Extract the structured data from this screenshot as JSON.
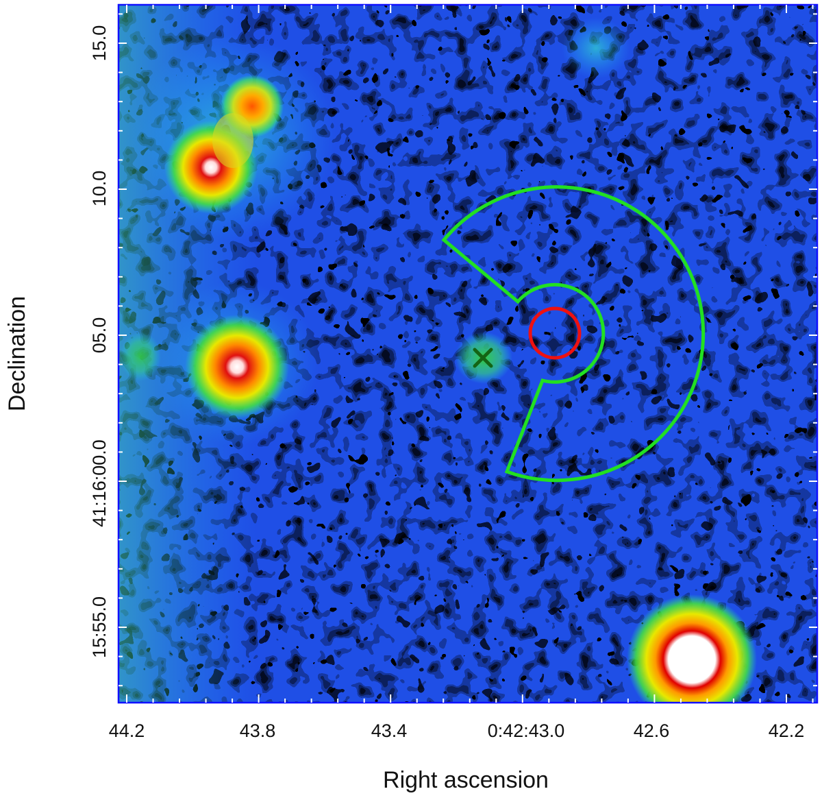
{
  "figure": {
    "xlabel": "Right ascension",
    "ylabel": "Declination"
  },
  "x_ticks": [
    "44.2",
    "43.8",
    "43.4",
    "0:42:43.0",
    "42.6",
    "42.2"
  ],
  "y_ticks": [
    "15.0",
    "10.0",
    "05.0",
    "41:16:00.0",
    "15:55.0"
  ],
  "colors": {
    "frame": "#1010ff",
    "region_annulus": "#22e022",
    "region_source": "#ee1111",
    "marker_x": "#146414"
  }
}
